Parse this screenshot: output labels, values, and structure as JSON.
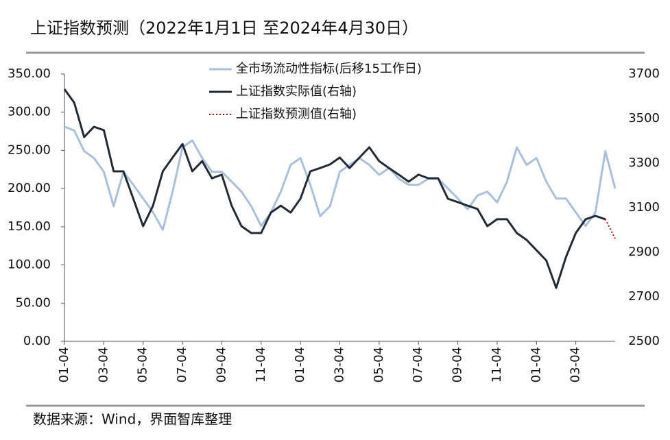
{
  "chart_data": {
    "type": "line",
    "title": "上证指数预测（2022年1月1日 至2024年4月30日）",
    "source": "数据来源：Wind，界面智库整理",
    "categories": [
      "01-04",
      null,
      null,
      null,
      "03-04",
      null,
      null,
      null,
      "05-04",
      null,
      null,
      null,
      "07-04",
      null,
      null,
      null,
      "09-04",
      null,
      null,
      null,
      "11-04",
      null,
      null,
      null,
      "01-04",
      null,
      null,
      null,
      "03-04",
      null,
      null,
      null,
      "05-04",
      null,
      null,
      null,
      "07-04",
      null,
      null,
      null,
      "09-04",
      null,
      null,
      null,
      "11-04",
      null,
      null,
      null,
      "01-04",
      null,
      null,
      null,
      "03-04",
      null,
      null,
      null,
      null
    ],
    "series": [
      {
        "name": "全市场流动性指标(后移15工作日)",
        "color": "#a9bfdc",
        "axis": "y",
        "values": [
          281,
          276,
          249,
          240,
          222,
          177,
          222,
          205,
          187,
          169,
          146,
          196,
          254,
          263,
          240,
          222,
          222,
          209,
          196,
          177,
          151,
          169,
          196,
          231,
          240,
          205,
          164,
          177,
          222,
          231,
          240,
          231,
          218,
          227,
          213,
          205,
          205,
          213,
          213,
          200,
          187,
          173,
          191,
          196,
          182,
          209,
          254,
          231,
          240,
          209,
          187,
          187,
          169,
          151,
          169,
          249,
          200
        ]
      },
      {
        "name": "上证指数实际值(右轴)",
        "color": "#222a35",
        "axis": "y2",
        "values": [
          3632,
          3571,
          3417,
          3463,
          3448,
          3263,
          3263,
          3140,
          3017,
          3109,
          3263,
          3325,
          3386,
          3263,
          3309,
          3232,
          3248,
          3109,
          3017,
          2986,
          2986,
          3078,
          3109,
          3078,
          3140,
          3263,
          3278,
          3294,
          3325,
          3278,
          3325,
          3371,
          3309,
          3278,
          3248,
          3217,
          3248,
          3232,
          3232,
          3140,
          3125,
          3109,
          3094,
          3017,
          3048,
          3048,
          2986,
          2955,
          2909,
          2863,
          2740,
          2878,
          2986,
          3048,
          3063,
          3048,
          null
        ]
      },
      {
        "name": "上证指数预测值(右轴)",
        "color": "#c00000",
        "axis": "y2",
        "dashed": true,
        "values": [
          null,
          null,
          null,
          null,
          null,
          null,
          null,
          null,
          null,
          null,
          null,
          null,
          null,
          null,
          null,
          null,
          null,
          null,
          null,
          null,
          null,
          null,
          null,
          null,
          null,
          null,
          null,
          null,
          null,
          null,
          null,
          null,
          null,
          null,
          null,
          null,
          null,
          null,
          null,
          null,
          null,
          null,
          null,
          null,
          null,
          null,
          null,
          null,
          null,
          null,
          null,
          null,
          null,
          null,
          null,
          3048,
          2961
        ]
      }
    ],
    "ylim": [
      0,
      350
    ],
    "yticks": [
      {
        "value": 0,
        "label": "0.00"
      },
      {
        "value": 50,
        "label": "50.00"
      },
      {
        "value": 100,
        "label": "100.00"
      },
      {
        "value": 150,
        "label": "150.00"
      },
      {
        "value": 200,
        "label": "200.00"
      },
      {
        "value": 250,
        "label": "250.00"
      },
      {
        "value": 300,
        "label": "300.00"
      },
      {
        "value": 350,
        "label": "350.00"
      }
    ],
    "y2lim": [
      2500,
      3700
    ],
    "y2ticks": [
      2500,
      2700,
      2900,
      3100,
      3300,
      3500,
      3700
    ]
  }
}
